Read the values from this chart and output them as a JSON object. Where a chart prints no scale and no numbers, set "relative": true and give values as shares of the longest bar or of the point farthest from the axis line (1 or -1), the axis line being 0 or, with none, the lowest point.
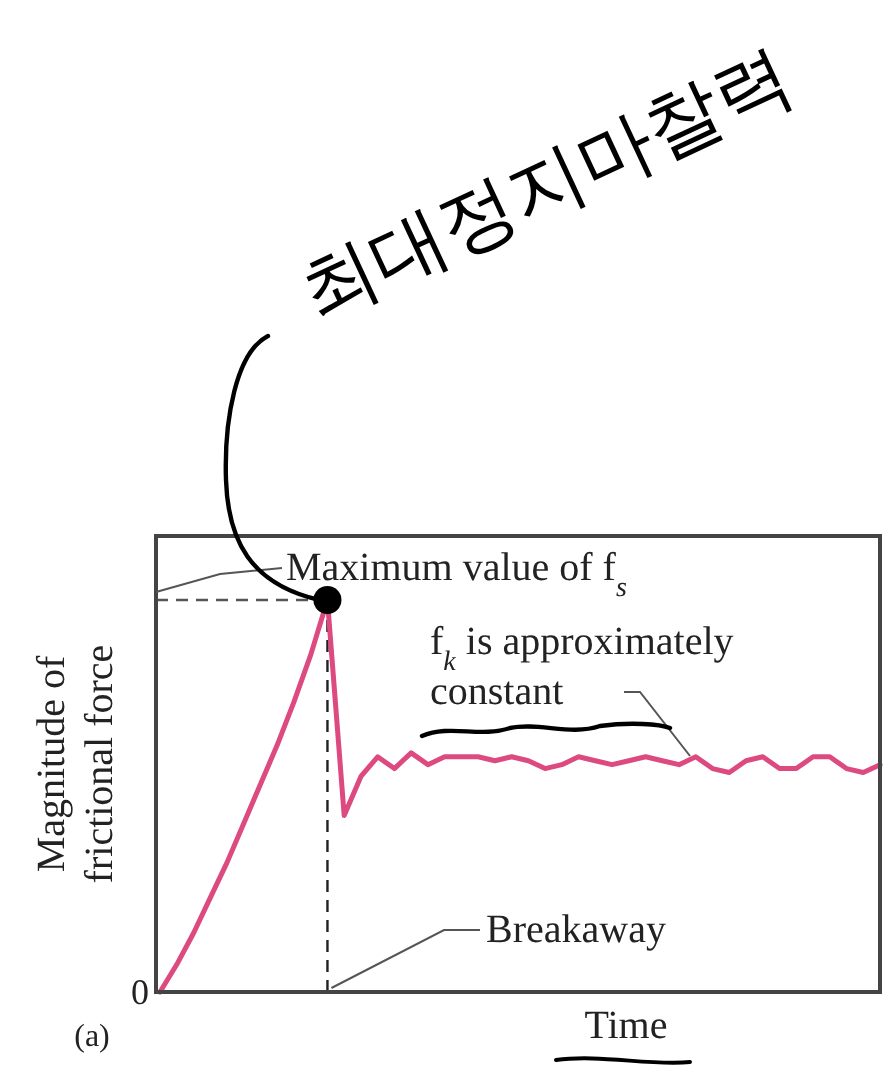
{
  "chart_data": {
    "type": "line",
    "relative": true,
    "xlabel": "Time",
    "ylabel": "Magnitude of frictional force",
    "categories": [
      null,
      null,
      null,
      null,
      null,
      null,
      null,
      null,
      null,
      null,
      null,
      null,
      null,
      null,
      null,
      null,
      null,
      null,
      null,
      null,
      null,
      null,
      null,
      null,
      null,
      null,
      null,
      null,
      null,
      null,
      null,
      null,
      null,
      null,
      null,
      null,
      null,
      null,
      null,
      null,
      null,
      null,
      null,
      null
    ],
    "series": [
      {
        "color": "#dc4a80",
        "values": [
          0,
          0.07,
          0.15,
          0.24,
          0.33,
          0.43,
          0.53,
          0.63,
          0.74,
          0.86,
          1.0,
          0.45,
          0.55,
          0.6,
          0.57,
          0.61,
          0.58,
          0.6,
          0.6,
          0.6,
          0.59,
          0.6,
          0.59,
          0.57,
          0.58,
          0.6,
          0.59,
          0.58,
          0.59,
          0.6,
          0.59,
          0.58,
          0.6,
          0.57,
          0.56,
          0.59,
          0.6,
          0.57,
          0.57,
          0.6,
          0.6,
          0.57,
          0.56,
          0.58
        ]
      }
    ],
    "ref_lines": [
      {
        "axis": "y",
        "value": 1,
        "line_style": "dashed"
      }
    ],
    "annotations": [
      "Maximum value of f$_{s}$",
      "f$_{k}$ is approximately constant",
      "Breakaway",
      "최대정지마찰력",
      "0",
      "(a)"
    ],
    "marker": "none",
    "line_style": "solid"
  }
}
